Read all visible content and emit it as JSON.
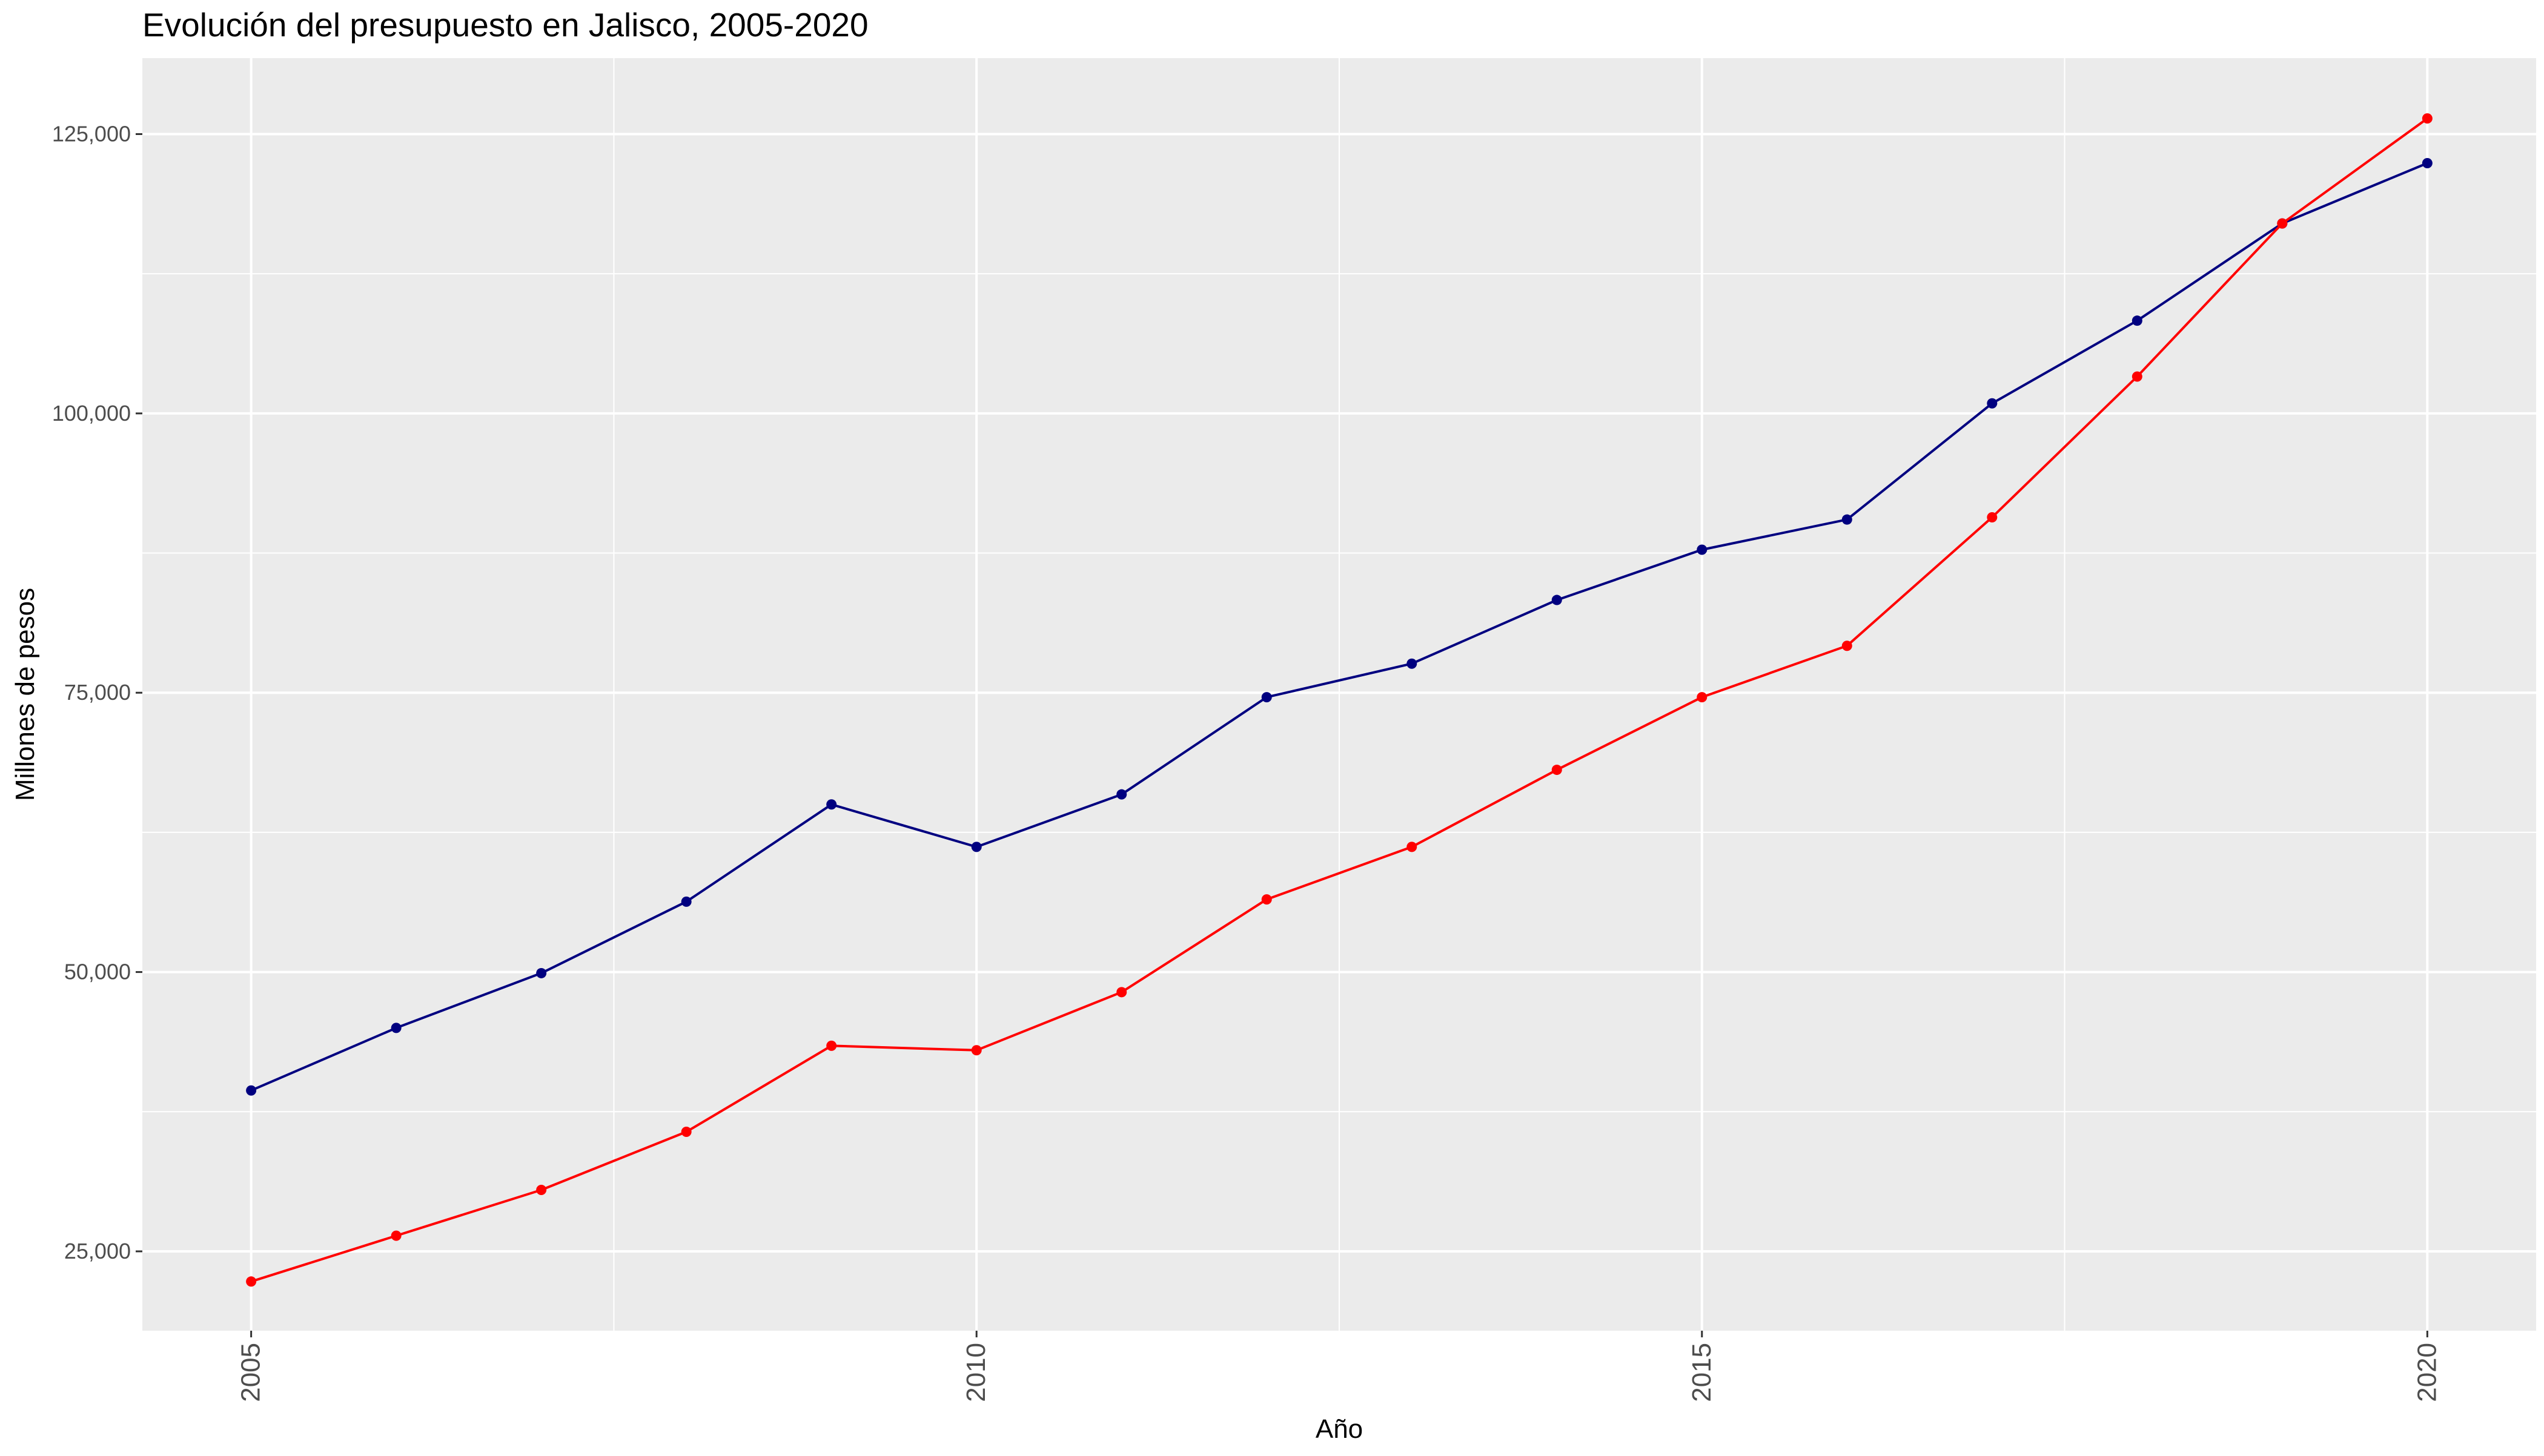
{
  "chart_data": {
    "type": "line",
    "title": "Evolución del presupuesto en Jalisco, 2005-2020",
    "xlabel": "Año",
    "ylabel": "Millones de pesos",
    "x": [
      2005,
      2006,
      2007,
      2008,
      2009,
      2010,
      2011,
      2012,
      2013,
      2014,
      2015,
      2016,
      2017,
      2018,
      2019,
      2020
    ],
    "xlim": [
      2004.25,
      2020.75
    ],
    "ylim": [
      17900,
      131800
    ],
    "x_ticks": [
      2005,
      2010,
      2015,
      2020
    ],
    "x_tick_labels": [
      "2005",
      "2010",
      "2015",
      "2020"
    ],
    "y_ticks": [
      25000,
      50000,
      75000,
      100000,
      125000
    ],
    "y_tick_labels": [
      "25,000",
      "50,000",
      "75,000",
      "100,000",
      "125,000"
    ],
    "grid": true,
    "legend": "none",
    "panel_background": "#ebebeb",
    "grid_color": "#ffffff",
    "series": [
      {
        "color": "#000080",
        "values": [
          39400,
          45000,
          49900,
          56300,
          65000,
          61200,
          65900,
          74600,
          77600,
          83300,
          87800,
          90500,
          100900,
          108300,
          117000,
          122400
        ]
      },
      {
        "color": "#ff0000",
        "values": [
          22300,
          26400,
          30500,
          35700,
          43400,
          43000,
          48200,
          56500,
          61200,
          68100,
          74600,
          79200,
          90700,
          103300,
          117000,
          126400
        ]
      }
    ]
  }
}
